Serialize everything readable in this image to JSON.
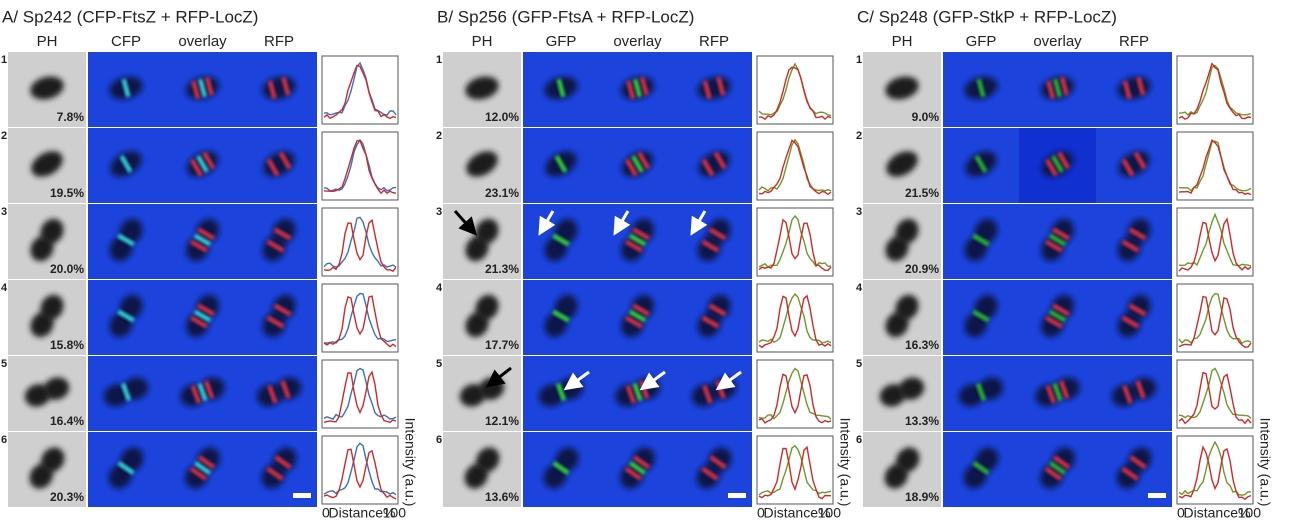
{
  "panels": [
    {
      "title": "A/ Sp242 (CFP-FtsZ + RFP-LocZ)",
      "columns": [
        "PH",
        "CFP",
        "overlay",
        "RFP"
      ],
      "rows": [
        {
          "number": 1,
          "percent": "7.8%"
        },
        {
          "number": 2,
          "percent": "19.5%"
        },
        {
          "number": 3,
          "percent": "20.0%"
        },
        {
          "number": 4,
          "percent": "15.8%"
        },
        {
          "number": 5,
          "percent": "16.4%"
        },
        {
          "number": 6,
          "percent": "20.3%"
        }
      ],
      "y_label": "Intensity (a.u.)",
      "x_label": {
        "start": "0",
        "name": "Distance%",
        "end": "100"
      }
    },
    {
      "title": "B/ Sp256 (GFP-FtsA + RFP-LocZ)",
      "columns": [
        "PH",
        "GFP",
        "overlay",
        "RFP"
      ],
      "rows": [
        {
          "number": 1,
          "percent": "12.0%"
        },
        {
          "number": 2,
          "percent": "23.1%"
        },
        {
          "number": 3,
          "percent": "21.3%"
        },
        {
          "number": 4,
          "percent": "17.7%"
        },
        {
          "number": 5,
          "percent": "12.1%"
        },
        {
          "number": 6,
          "percent": "13.6%"
        }
      ],
      "y_label": "Intensity (a.u.)",
      "x_label": {
        "start": "0",
        "name": "Distance%",
        "end": "100"
      }
    },
    {
      "title": "C/ Sp248 (GFP-StkP + RFP-LocZ)",
      "columns": [
        "PH",
        "GFP",
        "overlay",
        "RFP"
      ],
      "rows": [
        {
          "number": 1,
          "percent": "9.0%"
        },
        {
          "number": 2,
          "percent": "21.5%"
        },
        {
          "number": 3,
          "percent": "20.9%"
        },
        {
          "number": 4,
          "percent": "16.3%"
        },
        {
          "number": 5,
          "percent": "13.3%"
        },
        {
          "number": 6,
          "percent": "18.9%"
        }
      ],
      "y_label": "Intensity (a.u.)",
      "x_label": {
        "start": "0",
        "name": "Distance%",
        "end": "100"
      }
    }
  ]
}
